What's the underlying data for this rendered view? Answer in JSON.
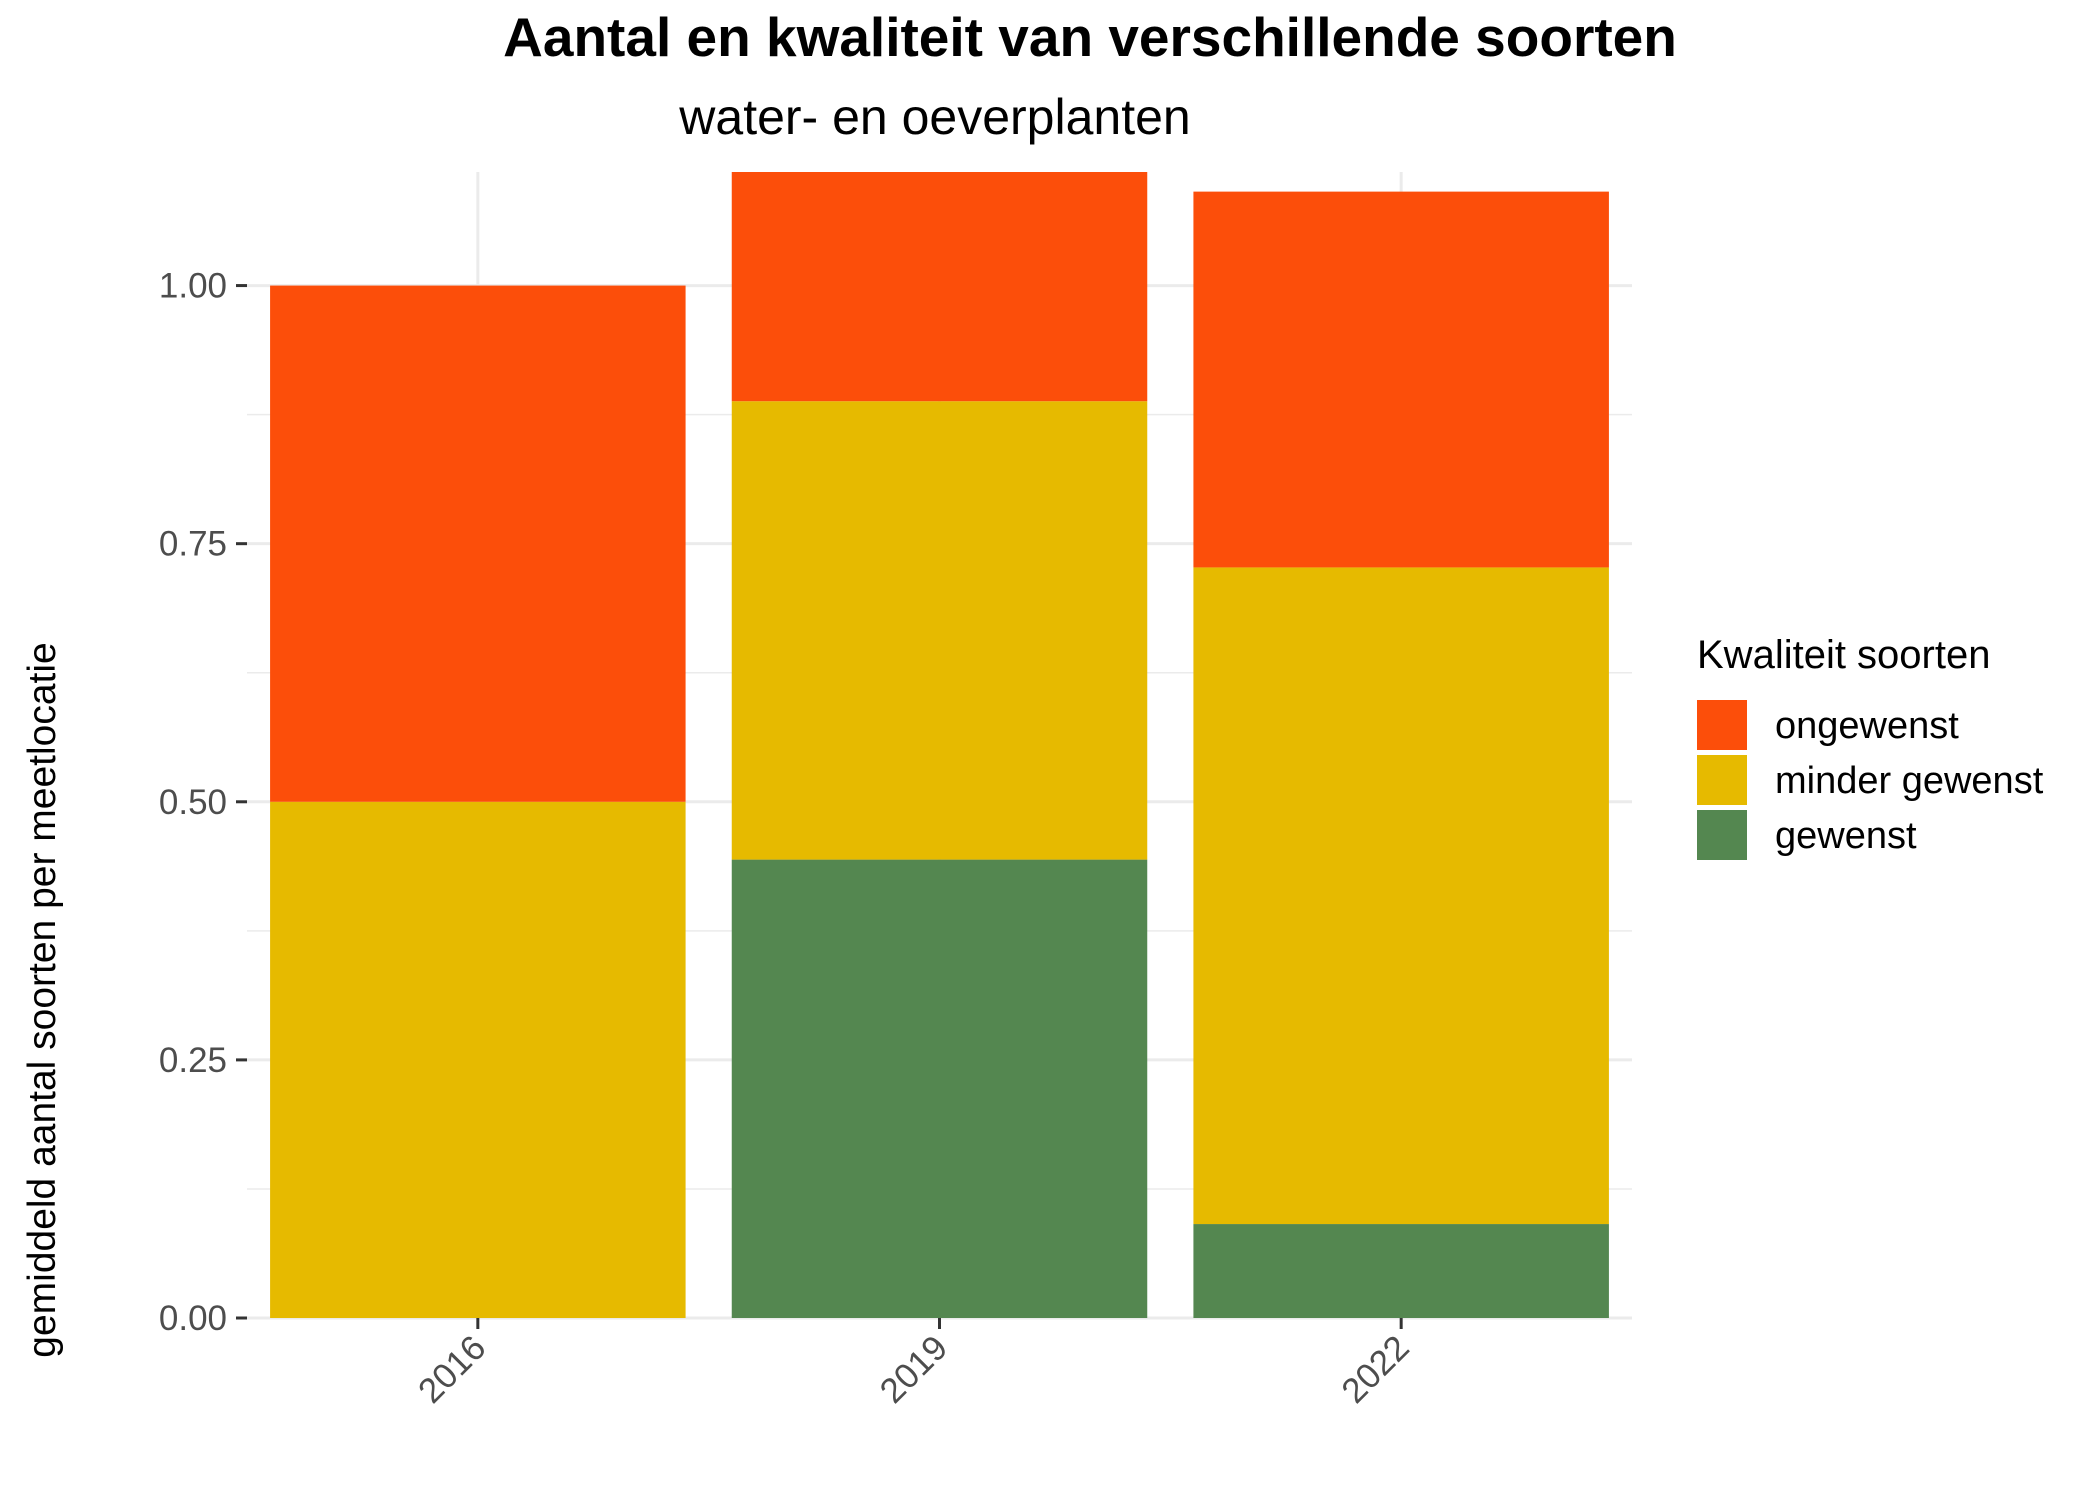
{
  "chart_data": {
    "type": "bar",
    "stacked": true,
    "title": "Aantal en kwaliteit van verschillende soorten",
    "subtitle": "water- en oeverplanten",
    "xlabel": "",
    "ylabel": "gemiddeld aantal soorten per meetlocatie",
    "categories": [
      "2016",
      "2019",
      "2022"
    ],
    "series": [
      {
        "name": "gewenst",
        "color": "#548750",
        "values": [
          0,
          0.444,
          0.091
        ]
      },
      {
        "name": "minder gewenst",
        "color": "#E6BA00",
        "values": [
          0.5,
          0.444,
          0.636
        ]
      },
      {
        "name": "ongewenst",
        "color": "#FC4E0A",
        "values": [
          0.5,
          0.222,
          0.364
        ]
      }
    ],
    "ylim": [
      0,
      1.11
    ],
    "y_ticks": [
      "0.00",
      "0.25",
      "0.50",
      "0.75",
      "1.00"
    ],
    "grid": true,
    "legend": {
      "title": "Kwaliteit soorten",
      "position": "right",
      "order": [
        "ongewenst",
        "minder gewenst",
        "gewenst"
      ]
    }
  },
  "colors": {
    "grid": "#ebebeb",
    "tick": "#333333"
  }
}
